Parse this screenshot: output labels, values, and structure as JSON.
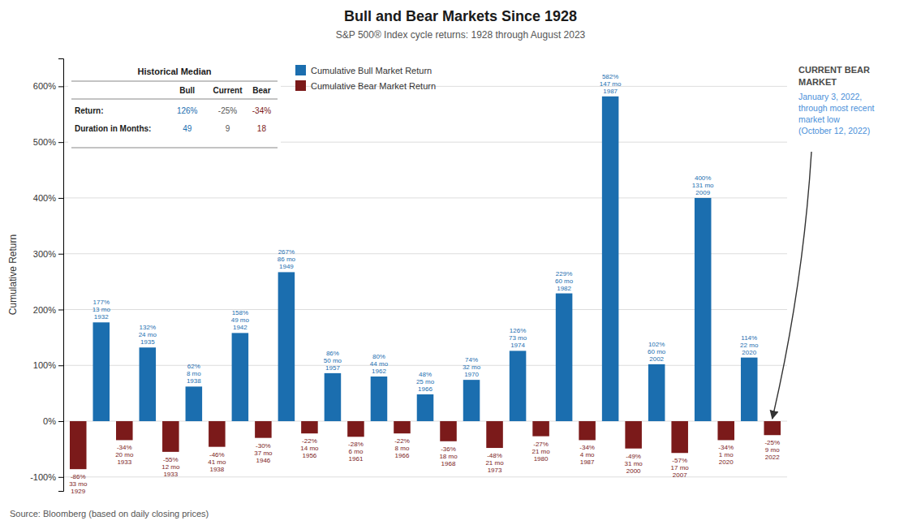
{
  "chart_data": {
    "type": "bar",
    "title": "Bull and Bear Markets Since 1928",
    "subtitle": "S&P 500® Index cycle returns: 1928 through August 2023",
    "source": "Source: Bloomberg (based on daily closing prices)",
    "ylabel": "Cumulative Return",
    "categories": [
      "1929",
      "1932",
      "1933",
      "1935",
      "1933",
      "1938",
      "1938",
      "1942",
      "1946",
      "1949",
      "1956",
      "1957",
      "1961",
      "1962",
      "1966",
      "1966",
      "1968",
      "1970",
      "1973",
      "1974",
      "1980",
      "1982",
      "1987",
      "1987",
      "2000",
      "2002",
      "2007",
      "2009",
      "2020",
      "2020",
      "2022"
    ],
    "duration_labels": [
      "33 mo",
      "13 mo",
      "20 mo",
      "24 mo",
      "12 mo",
      "8 mo",
      "41 mo",
      "49 mo",
      "37 mo",
      "86 mo",
      "14 mo",
      "50 mo",
      "6 mo",
      "44 mo",
      "8 mo",
      "25 mo",
      "18 mo",
      "32 mo",
      "21 mo",
      "73 mo",
      "21 mo",
      "60 mo",
      "4 mo",
      "147 mo",
      "31 mo",
      "60 mo",
      "17 mo",
      "131 mo",
      "1 mo",
      "22 mo",
      "9 mo"
    ],
    "series": [
      {
        "name": "Cumulative Bull Market Return",
        "color": "#1B6EAF",
        "values": [
          null,
          177,
          null,
          132,
          null,
          62,
          null,
          158,
          null,
          267,
          null,
          86,
          null,
          80,
          null,
          48,
          null,
          74,
          null,
          126,
          null,
          229,
          null,
          582,
          null,
          102,
          null,
          400,
          null,
          114,
          null
        ],
        "value_labels": [
          null,
          "177%",
          null,
          "132%",
          null,
          "62%",
          null,
          "158%",
          null,
          "267%",
          null,
          "86%",
          null,
          "80%",
          null,
          "48%",
          null,
          "74%",
          null,
          "126%",
          null,
          "229%",
          null,
          "582%",
          null,
          "102%",
          null,
          "400%",
          null,
          "114%",
          null
        ]
      },
      {
        "name": "Cumulative Bear Market Return",
        "color": "#7B1A1A",
        "values": [
          -86,
          null,
          -34,
          null,
          -55,
          null,
          -46,
          null,
          -30,
          null,
          -22,
          null,
          -28,
          null,
          -22,
          null,
          -36,
          null,
          -48,
          null,
          -27,
          null,
          -34,
          null,
          -49,
          null,
          -57,
          null,
          -34,
          null,
          -25
        ],
        "value_labels": [
          "-86%",
          null,
          "-34%",
          null,
          "-55%",
          null,
          "-46%",
          null,
          "-30%",
          null,
          "-22%",
          null,
          "-28%",
          null,
          "-22%",
          null,
          "-36%",
          null,
          "-48%",
          null,
          "-27%",
          null,
          "-34%",
          null,
          "-49%",
          null,
          "-57%",
          null,
          "-34%",
          null,
          "-25%"
        ]
      }
    ],
    "stacked": true,
    "data_labels": true,
    "ylim": [
      -125,
      650
    ],
    "yticks": [
      {
        "value": -100,
        "label": "-100%"
      },
      {
        "value": 0,
        "label": "0%"
      },
      {
        "value": 100,
        "label": "100%"
      },
      {
        "value": 200,
        "label": "200%"
      },
      {
        "value": 300,
        "label": "300%"
      },
      {
        "value": 400,
        "label": "400%"
      },
      {
        "value": 500,
        "label": "500%"
      },
      {
        "value": 600,
        "label": "600%"
      }
    ],
    "grid": true,
    "legend": "upper left",
    "tick_labels": "y",
    "table": {
      "title": "Historical Median",
      "columns": [
        "Bull",
        "Current",
        "Bear"
      ],
      "rows": [
        {
          "label": "Return:",
          "values": [
            "126%",
            "-25%",
            "-34%"
          ]
        },
        {
          "label": "Duration in Months:",
          "values": [
            "49",
            "9",
            "18"
          ]
        }
      ]
    },
    "annotations": [
      {
        "title": [
          "CURRENT BEAR",
          "MARKET"
        ],
        "text": [
          "January 3, 2022,",
          "through most recent",
          "market low",
          "(October 12, 2022)"
        ],
        "color": "#4A90D9"
      }
    ]
  }
}
